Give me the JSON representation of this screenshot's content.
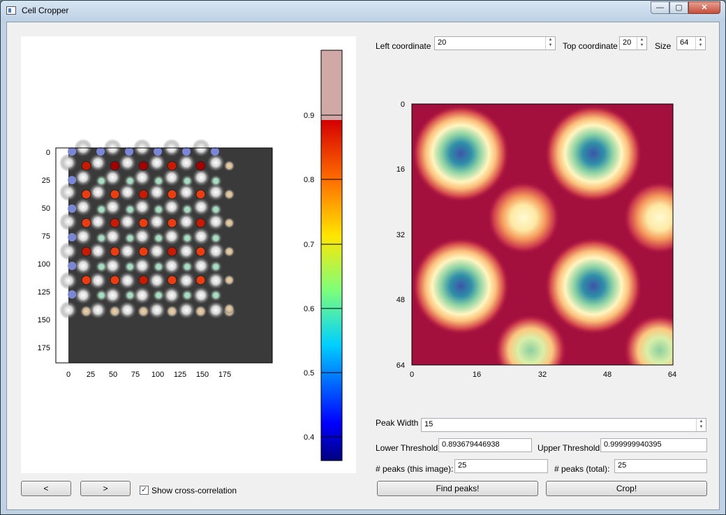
{
  "window": {
    "title": "Cell Cropper",
    "min_glyph": "—",
    "max_glyph": "▢",
    "close_glyph": "✕"
  },
  "left_plot": {
    "x_ticks": [
      "0",
      "25",
      "50",
      "75",
      "100",
      "125",
      "150",
      "175"
    ],
    "y_ticks": [
      "0",
      "25",
      "50",
      "75",
      "100",
      "125",
      "150",
      "175"
    ],
    "colorbar_ticks": [
      "0.9",
      "0.8",
      "0.7",
      "0.6",
      "0.5",
      "0.4"
    ]
  },
  "controls": {
    "left_label": "Left coordinate",
    "left_value": "20",
    "top_label": "Top coordinate",
    "top_value": "20",
    "size_label": "Size",
    "size_value": "64"
  },
  "right_plot": {
    "x_ticks": [
      "0",
      "16",
      "32",
      "48",
      "64"
    ],
    "y_ticks": [
      "0",
      "16",
      "32",
      "48",
      "64"
    ]
  },
  "settings": {
    "peak_width_label": "Peak Width",
    "peak_width_value": "15",
    "lower_label": "Lower Threshold",
    "lower_value": "0.893679446938",
    "upper_label": "Upper Threshold",
    "upper_value": "0.999999940395",
    "peaks_image_label": "# peaks (this image):",
    "peaks_image_value": "25",
    "peaks_total_label": "# peaks (total):",
    "peaks_total_value": "25"
  },
  "buttons": {
    "prev": "<",
    "next": ">",
    "show_cc_label": "Show cross-correlation",
    "show_cc_checked": true,
    "check_glyph": "✓",
    "find_peaks": "Find peaks!",
    "crop": "Crop!"
  }
}
